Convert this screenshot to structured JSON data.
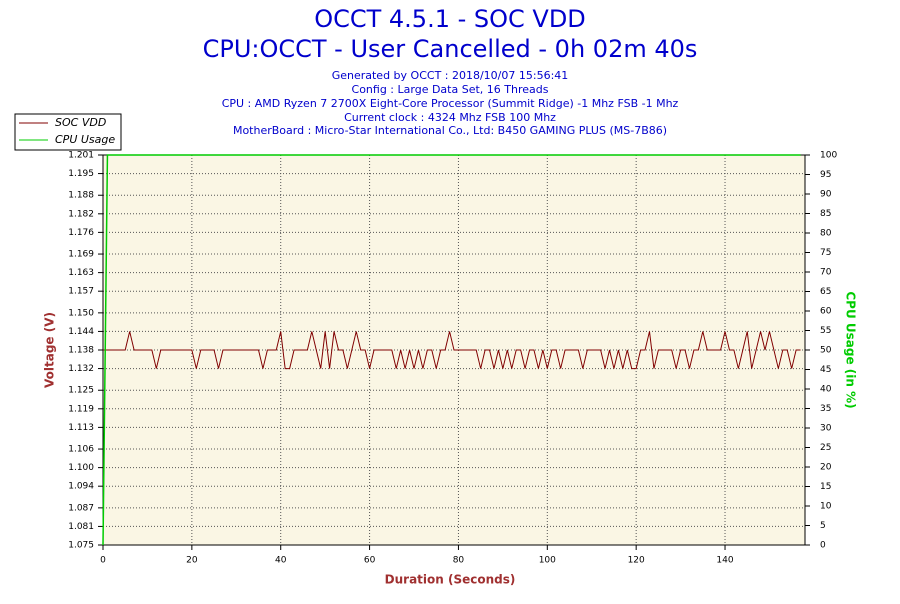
{
  "chart_data": {
    "type": "line",
    "title": "OCCT 4.5.1 - SOC VDD",
    "subtitle": "CPU:OCCT - User Cancelled - 0h 02m 40s",
    "info": [
      "Generated by OCCT : 2018/10/07 15:56:41",
      "Config : Large Data Set, 16 Threads",
      "CPU : AMD Ryzen 7 2700X Eight-Core Processor (Summit Ridge) -1 Mhz FSB -1 Mhz",
      "Current clock : 4324 Mhz FSB 100 Mhz",
      "MotherBoard : Micro-Star International Co., Ltd: B450 GAMING PLUS (MS-7B86)"
    ],
    "xlabel": "Duration (Seconds)",
    "ylabel": "Voltage (V)",
    "y2label": "CPU Usage (in %)",
    "xlim": [
      0,
      158
    ],
    "xticks": [
      0,
      20,
      40,
      60,
      80,
      100,
      120,
      140
    ],
    "ylim": [
      1.075,
      1.201
    ],
    "yticks": [
      1.075,
      1.081,
      1.087,
      1.094,
      {
        "value": 1.1,
        "label": "1.100"
      },
      1.106,
      1.113,
      1.119,
      1.125,
      1.132,
      1.138,
      1.144,
      {
        "value": 1.15,
        "label": "1.150"
      },
      1.157,
      1.163,
      1.169,
      1.176,
      1.182,
      1.188,
      1.195,
      1.201
    ],
    "y2lim": [
      0,
      100
    ],
    "y2ticks": [
      0,
      5,
      10,
      15,
      20,
      25,
      30,
      35,
      40,
      45,
      50,
      55,
      60,
      65,
      70,
      75,
      80,
      85,
      90,
      95,
      100
    ],
    "grid": true,
    "legend": "top-left",
    "x": [
      0,
      1,
      2,
      3,
      4,
      5,
      6,
      7,
      8,
      9,
      10,
      11,
      12,
      13,
      14,
      15,
      16,
      17,
      18,
      19,
      20,
      21,
      22,
      23,
      24,
      25,
      26,
      27,
      28,
      29,
      30,
      31,
      32,
      33,
      34,
      35,
      36,
      37,
      38,
      39,
      40,
      41,
      42,
      43,
      44,
      45,
      46,
      47,
      48,
      49,
      50,
      51,
      52,
      53,
      54,
      55,
      56,
      57,
      58,
      59,
      60,
      61,
      62,
      63,
      64,
      65,
      66,
      67,
      68,
      69,
      70,
      71,
      72,
      73,
      74,
      75,
      76,
      77,
      78,
      79,
      80,
      81,
      82,
      83,
      84,
      85,
      86,
      87,
      88,
      89,
      90,
      91,
      92,
      93,
      94,
      95,
      96,
      97,
      98,
      99,
      100,
      101,
      102,
      103,
      104,
      105,
      106,
      107,
      108,
      109,
      110,
      111,
      112,
      113,
      114,
      115,
      116,
      117,
      118,
      119,
      120,
      121,
      122,
      123,
      124,
      125,
      126,
      127,
      128,
      129,
      130,
      131,
      132,
      133,
      134,
      135,
      136,
      137,
      138,
      139,
      140,
      141,
      142,
      143,
      144,
      145,
      146,
      147,
      148,
      149,
      150,
      151,
      152,
      153,
      154,
      155,
      156,
      157
    ],
    "series": [
      {
        "name": "SOC VDD",
        "color": "#800000",
        "values": [
          1.138,
          1.138,
          1.138,
          1.138,
          1.138,
          1.138,
          1.144,
          1.138,
          1.138,
          1.138,
          1.138,
          1.138,
          1.132,
          1.138,
          1.138,
          1.138,
          1.138,
          1.138,
          1.138,
          1.138,
          1.138,
          1.132,
          1.138,
          1.138,
          1.138,
          1.138,
          1.132,
          1.138,
          1.138,
          1.138,
          1.138,
          1.138,
          1.138,
          1.138,
          1.138,
          1.138,
          1.132,
          1.138,
          1.138,
          1.138,
          1.144,
          1.132,
          1.132,
          1.138,
          1.138,
          1.138,
          1.138,
          1.144,
          1.138,
          1.132,
          1.144,
          1.132,
          1.144,
          1.138,
          1.138,
          1.132,
          1.138,
          1.144,
          1.138,
          1.138,
          1.132,
          1.138,
          1.138,
          1.138,
          1.138,
          1.138,
          1.132,
          1.138,
          1.132,
          1.138,
          1.132,
          1.138,
          1.132,
          1.138,
          1.138,
          1.132,
          1.138,
          1.138,
          1.144,
          1.138,
          1.138,
          1.138,
          1.138,
          1.138,
          1.138,
          1.132,
          1.138,
          1.138,
          1.132,
          1.138,
          1.132,
          1.138,
          1.132,
          1.138,
          1.138,
          1.132,
          1.138,
          1.138,
          1.132,
          1.138,
          1.132,
          1.138,
          1.138,
          1.132,
          1.138,
          1.138,
          1.138,
          1.138,
          1.132,
          1.138,
          1.138,
          1.138,
          1.138,
          1.132,
          1.138,
          1.132,
          1.138,
          1.132,
          1.138,
          1.132,
          1.132,
          1.138,
          1.138,
          1.144,
          1.132,
          1.138,
          1.138,
          1.138,
          1.138,
          1.132,
          1.138,
          1.138,
          1.132,
          1.138,
          1.138,
          1.144,
          1.138,
          1.138,
          1.138,
          1.138,
          1.144,
          1.138,
          1.138,
          1.132,
          1.138,
          1.144,
          1.132,
          1.138,
          1.144,
          1.138,
          1.144,
          1.138,
          1.132,
          1.138,
          1.138,
          1.132,
          1.138,
          1.138
        ]
      },
      {
        "name": "CPU Usage",
        "color": "#00cc00",
        "axis": "y2",
        "values": [
          0,
          100,
          100,
          100,
          100,
          100,
          100,
          100,
          100,
          100,
          100,
          100,
          100,
          100,
          100,
          100,
          100,
          100,
          100,
          100,
          100,
          100,
          100,
          100,
          100,
          100,
          100,
          100,
          100,
          100,
          100,
          100,
          100,
          100,
          100,
          100,
          100,
          100,
          100,
          100,
          100,
          100,
          100,
          100,
          100,
          100,
          100,
          100,
          100,
          100,
          100,
          100,
          100,
          100,
          100,
          100,
          100,
          100,
          100,
          100,
          100,
          100,
          100,
          100,
          100,
          100,
          100,
          100,
          100,
          100,
          100,
          100,
          100,
          100,
          100,
          100,
          100,
          100,
          100,
          100,
          100,
          100,
          100,
          100,
          100,
          100,
          100,
          100,
          100,
          100,
          100,
          100,
          100,
          100,
          100,
          100,
          100,
          100,
          100,
          100,
          100,
          100,
          100,
          100,
          100,
          100,
          100,
          100,
          100,
          100,
          100,
          100,
          100,
          100,
          100,
          100,
          100,
          100,
          100,
          100,
          100,
          100,
          100,
          100,
          100,
          100,
          100,
          100,
          100,
          100,
          100,
          100,
          100,
          100,
          100,
          100,
          100,
          100,
          100,
          100,
          100,
          100,
          100,
          100,
          100,
          100,
          100,
          100,
          100,
          100,
          100,
          100,
          100,
          100,
          100,
          100,
          100,
          100
        ]
      }
    ]
  }
}
